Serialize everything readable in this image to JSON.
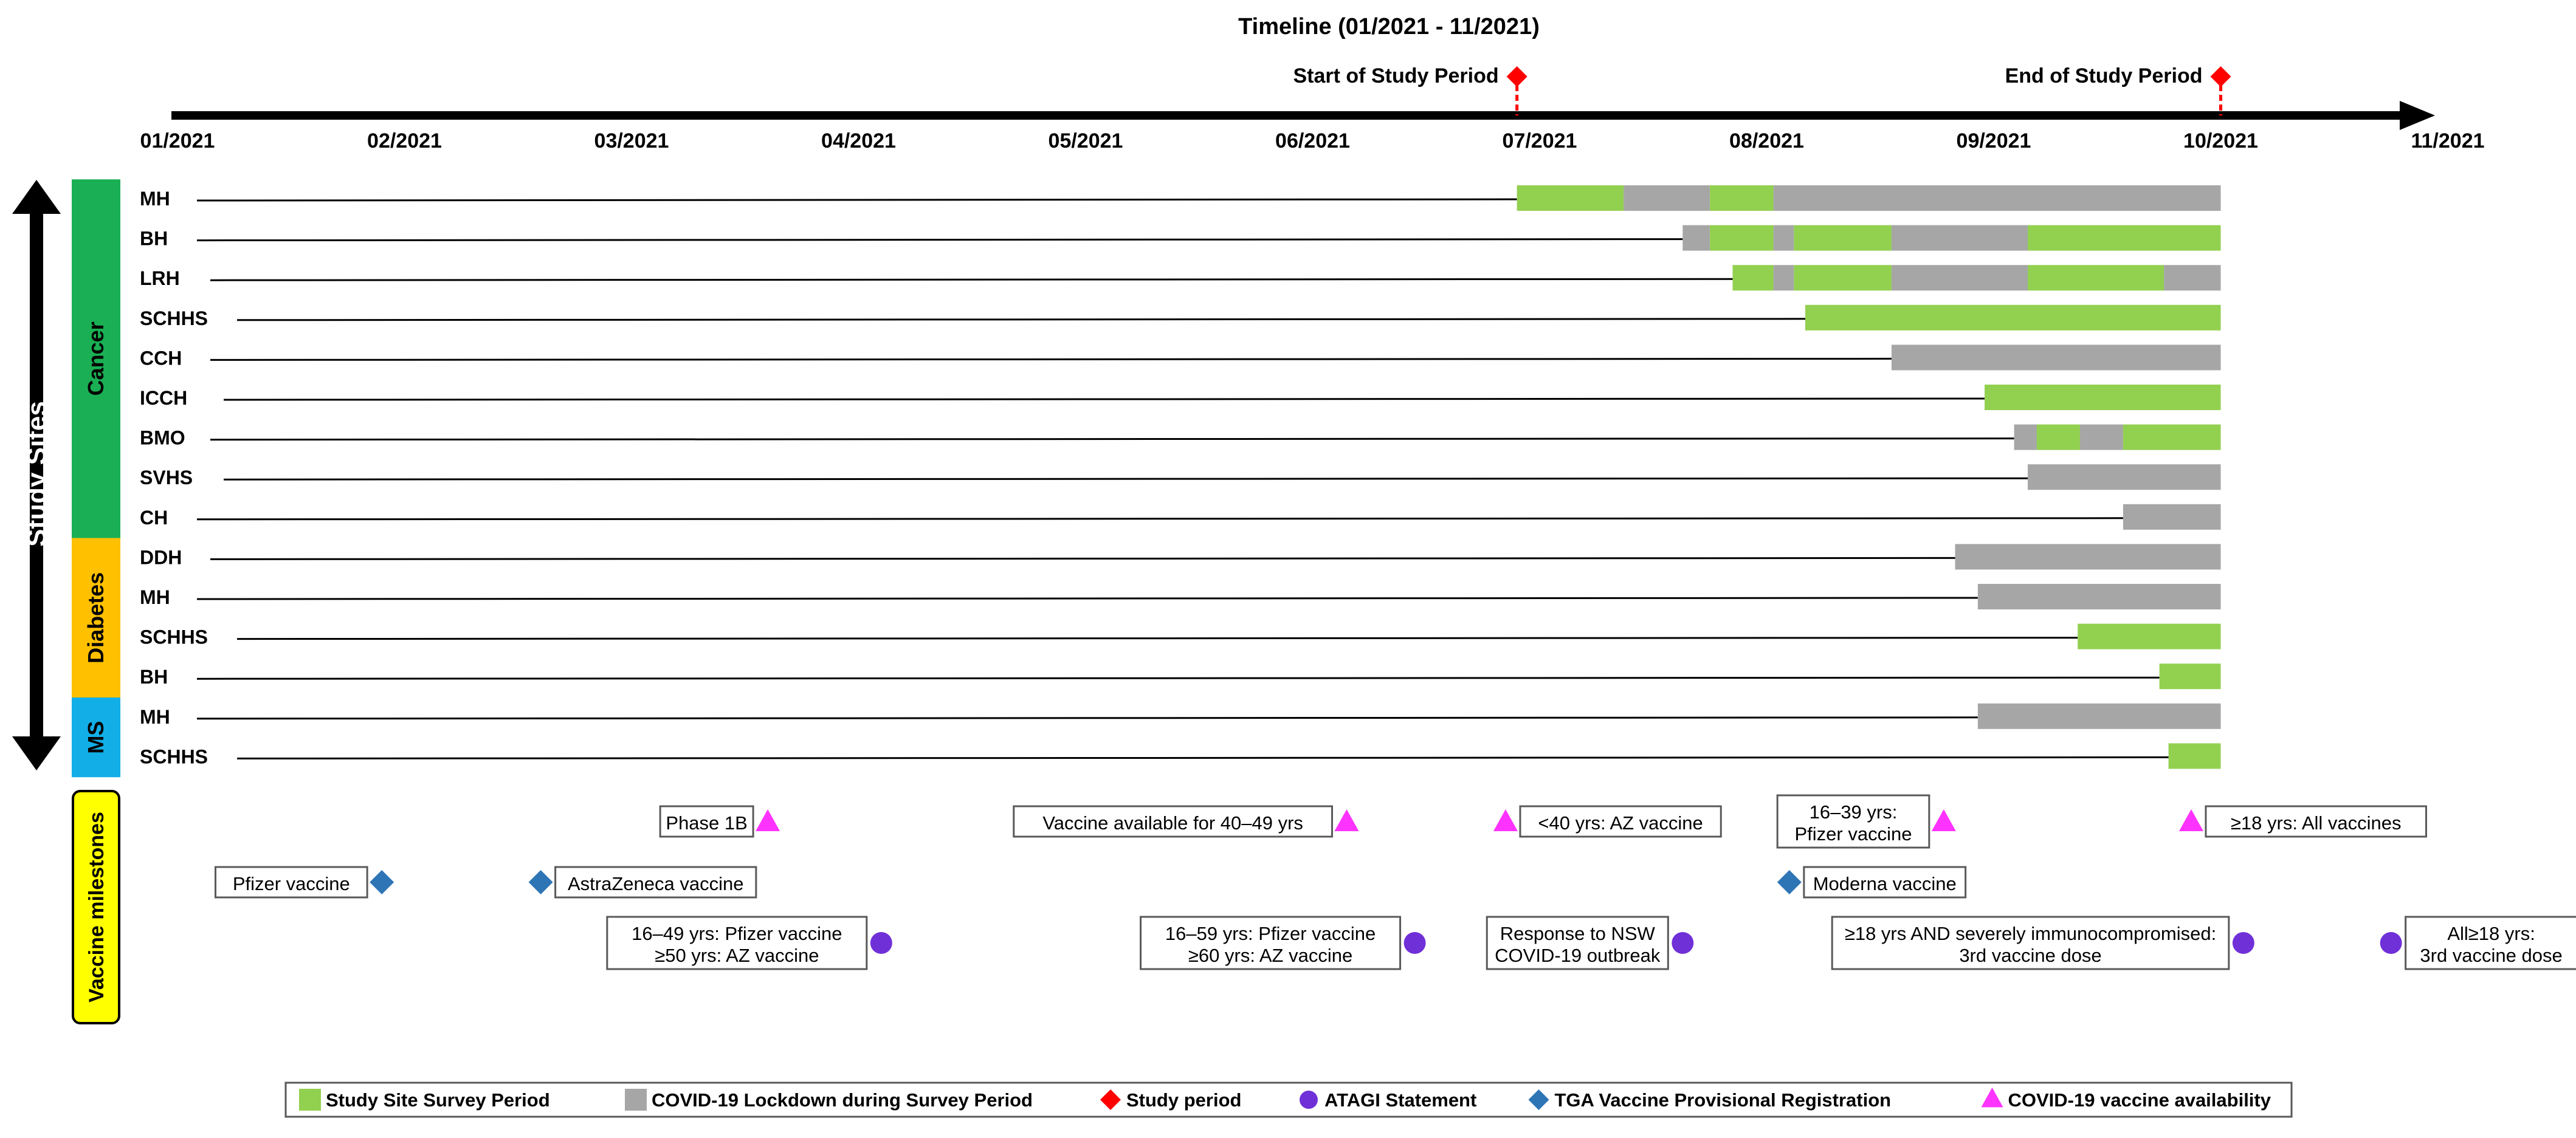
{
  "title": "Timeline (01/2021 - 11/2021)",
  "months": [
    "01/2021",
    "02/2021",
    "03/2021",
    "04/2021",
    "05/2021",
    "06/2021",
    "07/2021",
    "08/2021",
    "09/2021",
    "10/2021",
    "11/2021"
  ],
  "study_period": {
    "start_label": "Start of Study Period",
    "start": 5.9,
    "end_label": "End of Study Period",
    "end": 9.0
  },
  "y_axis_label": "Study Sites",
  "groups": [
    {
      "name": "Cancer",
      "color": "#1aaf54",
      "rows": [
        0,
        9
      ]
    },
    {
      "name": "Diabetes",
      "color": "#ffc000",
      "rows": [
        9,
        13
      ]
    },
    {
      "name": "MS",
      "color": "#12aee8",
      "rows": [
        13,
        15
      ]
    }
  ],
  "colors": {
    "survey": "#92d050",
    "lockdown": "#a6a6a6",
    "study": "#ff0000",
    "atagi": "#7030d8",
    "tga": "#2e75b6",
    "availability": "#ff33ff",
    "milestone_bg": "#ffff00"
  },
  "sites": [
    {
      "label": "MH",
      "segments": [
        [
          "survey",
          5.9,
          6.37
        ],
        [
          "lockdown",
          6.37,
          6.75
        ],
        [
          "survey",
          6.75,
          7.03
        ],
        [
          "lockdown",
          7.03,
          9.0
        ]
      ]
    },
    {
      "label": "BH",
      "segments": [
        [
          "lockdown",
          6.63,
          6.75
        ],
        [
          "survey",
          6.75,
          7.03
        ],
        [
          "lockdown",
          7.03,
          7.12
        ],
        [
          "survey",
          7.12,
          7.55
        ],
        [
          "lockdown",
          7.55,
          8.15
        ],
        [
          "survey",
          8.15,
          9.0
        ]
      ]
    },
    {
      "label": "LRH",
      "segments": [
        [
          "survey",
          6.85,
          7.03
        ],
        [
          "lockdown",
          7.03,
          7.12
        ],
        [
          "survey",
          7.12,
          7.55
        ],
        [
          "lockdown",
          7.55,
          8.15
        ],
        [
          "survey",
          8.15,
          8.75
        ],
        [
          "lockdown",
          8.75,
          9.0
        ]
      ]
    },
    {
      "label": "SCHHS",
      "segments": [
        [
          "survey",
          7.17,
          9.0
        ]
      ]
    },
    {
      "label": "CCH",
      "segments": [
        [
          "lockdown",
          7.55,
          9.0
        ]
      ]
    },
    {
      "label": "ICCH",
      "segments": [
        [
          "survey",
          7.96,
          9.0
        ]
      ]
    },
    {
      "label": "BMO",
      "segments": [
        [
          "lockdown",
          8.09,
          8.19
        ],
        [
          "survey",
          8.19,
          8.38
        ],
        [
          "lockdown",
          8.38,
          8.57
        ],
        [
          "survey",
          8.57,
          9.0
        ]
      ]
    },
    {
      "label": "SVHS",
      "segments": [
        [
          "lockdown",
          8.15,
          9.0
        ]
      ]
    },
    {
      "label": "CH",
      "segments": [
        [
          "lockdown",
          8.57,
          9.0
        ]
      ]
    },
    {
      "label": "DDH",
      "segments": [
        [
          "lockdown",
          7.83,
          9.0
        ]
      ]
    },
    {
      "label": "MH",
      "segments": [
        [
          "lockdown",
          7.93,
          9.0
        ]
      ]
    },
    {
      "label": "SCHHS",
      "segments": [
        [
          "survey",
          8.37,
          9.0
        ]
      ]
    },
    {
      "label": "BH",
      "segments": [
        [
          "survey",
          8.73,
          9.0
        ]
      ]
    },
    {
      "label": "MH",
      "segments": [
        [
          "lockdown",
          7.93,
          9.0
        ]
      ]
    },
    {
      "label": "SCHHS",
      "segments": [
        [
          "survey",
          8.77,
          9.0
        ]
      ]
    }
  ],
  "milestones_label": "Vaccine milestones",
  "milestones": [
    {
      "lines": [
        "Phase 1B"
      ],
      "marker": "availability",
      "at": 2.6,
      "side": "left",
      "lane": 0
    },
    {
      "lines": [
        "Vaccine available for 40–49 yrs"
      ],
      "marker": "availability",
      "at": 5.15,
      "side": "left",
      "lane": 0
    },
    {
      "lines": [
        "<40 yrs: AZ vaccine"
      ],
      "marker": "availability",
      "at": 5.85,
      "side": "right",
      "lane": 0
    },
    {
      "lines": [
        "16–39 yrs:",
        "Pfizer vaccine"
      ],
      "marker": "availability",
      "at": 7.78,
      "side": "left",
      "lane": 0
    },
    {
      "lines": [
        "≥18 yrs: All vaccines"
      ],
      "marker": "availability",
      "at": 8.87,
      "side": "right",
      "lane": 0
    },
    {
      "lines": [
        "Pfizer vaccine"
      ],
      "marker": "tga",
      "at": 0.9,
      "side": "left",
      "lane": 1
    },
    {
      "lines": [
        "AstraZeneca vaccine"
      ],
      "marker": "tga",
      "at": 1.6,
      "side": "right",
      "lane": 1
    },
    {
      "lines": [
        "Moderna vaccine"
      ],
      "marker": "tga",
      "at": 7.1,
      "side": "right",
      "lane": 1
    },
    {
      "lines": [
        "16–49 yrs: Pfizer vaccine",
        "≥50 yrs: AZ vaccine"
      ],
      "marker": "atagi",
      "at": 3.1,
      "side": "left",
      "lane": 2
    },
    {
      "lines": [
        "16–59 yrs: Pfizer vaccine",
        "≥60 yrs: AZ vaccine"
      ],
      "marker": "atagi",
      "at": 5.45,
      "side": "left",
      "lane": 2
    },
    {
      "lines": [
        "Response to NSW",
        "COVID-19 outbreak"
      ],
      "marker": "atagi",
      "at": 6.63,
      "side": "left",
      "lane": 2
    },
    {
      "lines": [
        "≥18 yrs AND severely immunocompromised:",
        "3rd vaccine dose"
      ],
      "marker": "atagi",
      "at": 9.1,
      "side": "left",
      "lane": 2
    },
    {
      "lines": [
        "All≥18 yrs:",
        "3rd vaccine dose"
      ],
      "marker": "atagi",
      "at": 9.75,
      "side": "right",
      "lane": 2
    }
  ],
  "legend": [
    {
      "key": "survey",
      "shape": "square",
      "label": "Study Site Survey Period"
    },
    {
      "key": "lockdown",
      "shape": "square",
      "label": "COVID-19 Lockdown during Survey Period"
    },
    {
      "key": "study",
      "shape": "diamond",
      "label": "Study period"
    },
    {
      "key": "atagi",
      "shape": "circle",
      "label": "ATAGI Statement"
    },
    {
      "key": "tga",
      "shape": "diamond",
      "label": "TGA Vaccine Provisional Registration"
    },
    {
      "key": "availability",
      "shape": "triangle",
      "label": "COVID-19 vaccine availability"
    }
  ]
}
